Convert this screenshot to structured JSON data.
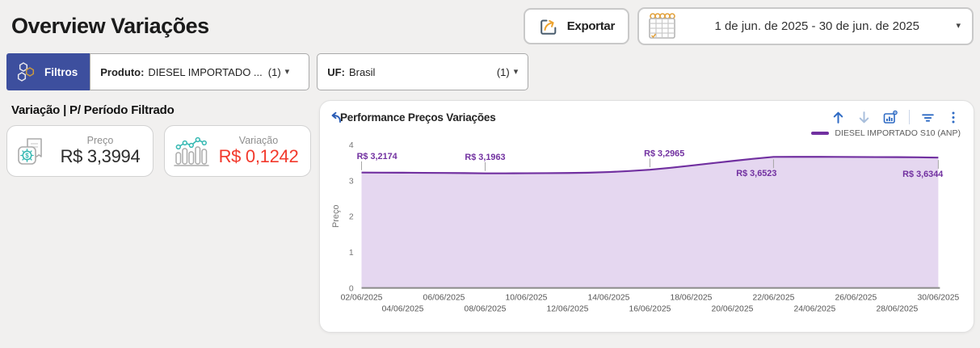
{
  "header": {
    "title": "Overview Variações",
    "export_label": "Exportar",
    "date_range": "1 de jun. de 2025 - 30 de jun. de 2025",
    "caret": "▾"
  },
  "filters": {
    "button_label": "Filtros",
    "produto": {
      "label": "Produto:",
      "value": "DIESEL IMPORTADO ...",
      "count": "(1)",
      "caret": "▾"
    },
    "uf": {
      "label": "UF:",
      "value": "Brasil",
      "count": "(1)",
      "caret": "▾"
    }
  },
  "metrics": {
    "section_title": "Variação | P/ Período Filtrado",
    "cards": [
      {
        "label": "Preço",
        "value": "R$ 3,3994",
        "icon": "price-receipt-icon"
      },
      {
        "label": "Variação",
        "value": "R$ 0,1242",
        "icon": "bar-trend-icon"
      }
    ]
  },
  "chart": {
    "title": "Performance Preços Variações",
    "legend": "DIESEL IMPORTADO S10 (ANP)"
  },
  "colors": {
    "filters_accent": "#3d4f9e",
    "negative_red": "#f2392c",
    "teal_accent": "#35b8b2",
    "series_purple": "#7130a0",
    "series_fill": "#e5d7f0",
    "toolbar_blue": "#2f6bc4",
    "gold_accent": "#e3a23c"
  },
  "chart_data": {
    "type": "area",
    "title": "Performance Preços Variações",
    "xlabel": "",
    "ylabel": "Preço",
    "ylim": [
      0,
      4
    ],
    "y_ticks": [
      0,
      1,
      2,
      3,
      4
    ],
    "grid": false,
    "legend_position": "top-right",
    "x_start_day": 2,
    "x_end_day": 30,
    "x_tick_rows": [
      {
        "days": [
          2,
          6,
          10,
          14,
          18,
          22,
          26,
          30
        ],
        "labels": [
          "02/06/2025",
          "06/06/2025",
          "10/06/2025",
          "14/06/2025",
          "18/06/2025",
          "22/06/2025",
          "26/06/2025",
          "30/06/2025"
        ]
      },
      {
        "days": [
          4,
          8,
          12,
          16,
          20,
          24,
          28
        ],
        "labels": [
          "04/06/2025",
          "08/06/2025",
          "12/06/2025",
          "16/06/2025",
          "20/06/2025",
          "24/06/2025",
          "28/06/2025"
        ]
      }
    ],
    "series": [
      {
        "name": "DIESEL IMPORTADO S10 (ANP)",
        "color": "#7130a0",
        "fill": "#e5d7f0",
        "values": [
          3.2174,
          3.215,
          3.2125,
          3.21,
          3.207,
          3.203,
          3.1963,
          3.1965,
          3.1975,
          3.2,
          3.205,
          3.213,
          3.23,
          3.26,
          3.2965,
          3.35,
          3.41,
          3.475,
          3.54,
          3.6,
          3.6523,
          3.656,
          3.656,
          3.654,
          3.652,
          3.65,
          3.647,
          3.642,
          3.6344
        ]
      }
    ],
    "point_labels": [
      {
        "text": "R$ 3,2174",
        "day": 2,
        "value": 3.2174,
        "pos": "above",
        "anchor": "start",
        "dx": -6
      },
      {
        "text": "R$ 3,1963",
        "day": 8,
        "value": 3.1963,
        "pos": "above",
        "anchor": "middle",
        "dx": 0
      },
      {
        "text": "R$ 3,2965",
        "day": 16,
        "value": 3.2965,
        "pos": "above",
        "anchor": "middle",
        "dx": 18
      },
      {
        "text": "R$ 3,6523",
        "day": 22,
        "value": 3.6523,
        "pos": "below",
        "anchor": "end",
        "dx": 4
      },
      {
        "text": "R$ 3,6344",
        "day": 30,
        "value": 3.6344,
        "pos": "below",
        "anchor": "end",
        "dx": 6
      }
    ]
  }
}
